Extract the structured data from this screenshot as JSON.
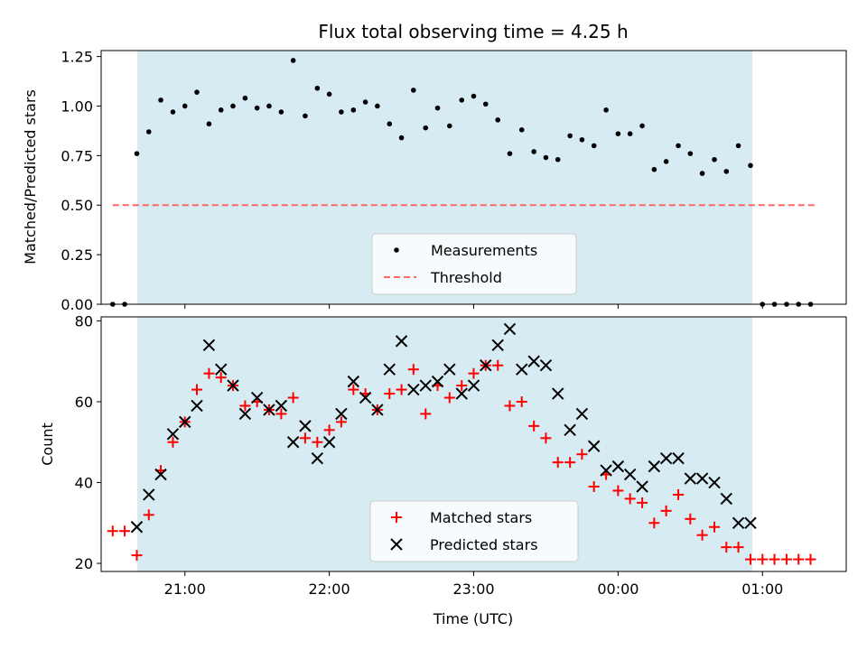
{
  "chart_data": [
    {
      "type": "scatter",
      "title": "Flux total observing time = 4.25 h",
      "ylabel": "Matched/Predicted stars",
      "ylim": [
        0,
        1.28
      ],
      "yticks": [
        0,
        0.25,
        0.5,
        0.75,
        1.0,
        1.25
      ],
      "ytick_labels": [
        "0.00",
        "0.25",
        "0.50",
        "0.75",
        "1.00",
        "1.25"
      ],
      "shaded_span": {
        "start_hour": 20.67,
        "end_hour": 24.93,
        "color": "#add8e6"
      },
      "threshold": {
        "name": "Threshold",
        "value": 0.5,
        "x_start_hour": 20.5,
        "x_end_hour": 25.37,
        "color": "#ff6666"
      },
      "legend": {
        "placement": "lower-center",
        "entries": [
          "Measurements",
          "Threshold"
        ]
      },
      "series": [
        {
          "name": "Measurements",
          "color": "#000000",
          "x_hours": [
            20.5,
            20.583,
            20.667,
            20.75,
            20.833,
            20.917,
            21.0,
            21.083,
            21.167,
            21.25,
            21.333,
            21.417,
            21.5,
            21.583,
            21.667,
            21.75,
            21.833,
            21.917,
            22.0,
            22.083,
            22.167,
            22.25,
            22.333,
            22.417,
            22.5,
            22.583,
            22.667,
            22.75,
            22.833,
            22.917,
            23.0,
            23.083,
            23.167,
            23.25,
            23.333,
            23.417,
            23.5,
            23.583,
            23.667,
            23.75,
            23.833,
            23.917,
            24.0,
            24.083,
            24.167,
            24.25,
            24.333,
            24.417,
            24.5,
            24.583,
            24.667,
            24.75,
            24.833,
            24.917,
            25.0,
            25.083,
            25.167,
            25.25,
            25.333
          ],
          "y": [
            0.0,
            0.0,
            0.76,
            0.87,
            1.03,
            0.97,
            1.0,
            1.07,
            0.91,
            0.98,
            1.0,
            1.04,
            0.99,
            1.0,
            0.97,
            1.23,
            0.95,
            1.09,
            1.06,
            0.97,
            0.98,
            1.02,
            1.0,
            0.91,
            0.84,
            1.08,
            0.89,
            0.99,
            0.9,
            1.03,
            1.05,
            1.01,
            0.93,
            0.76,
            0.88,
            0.77,
            0.74,
            0.73,
            0.85,
            0.83,
            0.8,
            0.98,
            0.86,
            0.86,
            0.9,
            0.68,
            0.72,
            0.8,
            0.76,
            0.66,
            0.73,
            0.67,
            0.8,
            0.7,
            0.0,
            0.0,
            0.0,
            0.0,
            0.0
          ]
        }
      ]
    },
    {
      "type": "scatter",
      "xlabel": "Time (UTC)",
      "ylabel": "Count",
      "ylim": [
        18,
        81
      ],
      "xlim_hours": [
        20.42,
        25.58
      ],
      "yticks": [
        20,
        40,
        60,
        80
      ],
      "ytick_labels": [
        "20",
        "40",
        "60",
        "80"
      ],
      "xticks_hours": [
        21,
        22,
        23,
        24,
        25
      ],
      "xtick_labels": [
        "21:00",
        "22:00",
        "23:00",
        "00:00",
        "01:00"
      ],
      "shaded_span": {
        "start_hour": 20.67,
        "end_hour": 24.93,
        "color": "#add8e6"
      },
      "legend": {
        "placement": "lower-center",
        "entries": [
          "Matched stars",
          "Predicted stars"
        ]
      },
      "series": [
        {
          "name": "Matched stars",
          "marker": "plus",
          "color": "#ff0000",
          "x_hours": [
            20.5,
            20.583,
            20.667,
            20.75,
            20.833,
            20.917,
            21.0,
            21.083,
            21.167,
            21.25,
            21.333,
            21.417,
            21.5,
            21.583,
            21.667,
            21.75,
            21.833,
            21.917,
            22.0,
            22.083,
            22.167,
            22.25,
            22.333,
            22.417,
            22.5,
            22.583,
            22.667,
            22.75,
            22.833,
            22.917,
            23.0,
            23.083,
            23.167,
            23.25,
            23.333,
            23.417,
            23.5,
            23.583,
            23.667,
            23.75,
            23.833,
            23.917,
            24.0,
            24.083,
            24.167,
            24.25,
            24.333,
            24.417,
            24.5,
            24.583,
            24.667,
            24.75,
            24.833,
            24.917,
            25.0,
            25.083,
            25.167,
            25.25,
            25.333
          ],
          "y": [
            28,
            28,
            22,
            32,
            43,
            50,
            55,
            63,
            67,
            66,
            64,
            59,
            60,
            58,
            57,
            61,
            51,
            50,
            53,
            55,
            63,
            62,
            58,
            62,
            63,
            68,
            57,
            64,
            61,
            64,
            67,
            69,
            69,
            59,
            60,
            54,
            51,
            45,
            45,
            47,
            39,
            42,
            38,
            36,
            35,
            30,
            33,
            37,
            31,
            27,
            29,
            24,
            24,
            21,
            21,
            21,
            21,
            21,
            21
          ]
        },
        {
          "name": "Predicted stars",
          "marker": "x",
          "color": "#000000",
          "x_hours": [
            20.667,
            20.75,
            20.833,
            20.917,
            21.0,
            21.083,
            21.167,
            21.25,
            21.333,
            21.417,
            21.5,
            21.583,
            21.667,
            21.75,
            21.833,
            21.917,
            22.0,
            22.083,
            22.167,
            22.25,
            22.333,
            22.417,
            22.5,
            22.583,
            22.667,
            22.75,
            22.833,
            22.917,
            23.0,
            23.083,
            23.167,
            23.25,
            23.333,
            23.417,
            23.5,
            23.583,
            23.667,
            23.75,
            23.833,
            23.917,
            24.0,
            24.083,
            24.167,
            24.25,
            24.333,
            24.417,
            24.5,
            24.583,
            24.667,
            24.75,
            24.833,
            24.917
          ],
          "y": [
            29,
            37,
            42,
            52,
            55,
            59,
            74,
            68,
            64,
            57,
            61,
            58,
            59,
            50,
            54,
            46,
            50,
            57,
            65,
            61,
            58,
            68,
            75,
            63,
            64,
            65,
            68,
            62,
            64,
            69,
            74,
            78,
            68,
            70,
            69,
            62,
            53,
            57,
            49,
            43,
            44,
            42,
            39,
            44,
            46,
            46,
            41,
            41,
            40,
            36,
            30,
            30
          ]
        }
      ]
    }
  ]
}
